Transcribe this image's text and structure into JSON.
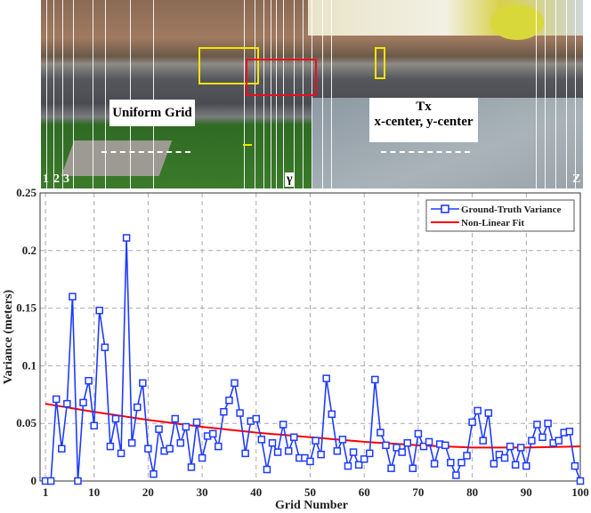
{
  "photo": {
    "label_grid": "Uniform Grid",
    "label_tx_line1": "Tx",
    "label_tx_line2": "x-center, y-center",
    "grid_index_labels": [
      "1",
      "2",
      "3"
    ],
    "gamma_label": "γ",
    "last_label": "Z",
    "box_colors": {
      "yellow": "#f2e600",
      "red": "#e8101a"
    }
  },
  "chart_data": {
    "type": "line",
    "xlabel": "Grid Number",
    "ylabel": "Variance (meters)",
    "xlim": [
      0,
      100
    ],
    "ylim": [
      0,
      0.25
    ],
    "xticks": [
      1,
      10,
      20,
      30,
      40,
      50,
      60,
      70,
      80,
      90,
      100
    ],
    "yticks": [
      0,
      0.05,
      0.1,
      0.15,
      0.2,
      0.25
    ],
    "ytick_labels": [
      "0",
      "0.05",
      "0.1",
      "0.15",
      "0.2",
      "0.25"
    ],
    "grid": true,
    "legend_placement": "top-right",
    "series": [
      {
        "name": "Ground-Truth Variance",
        "color": "#1f3bff",
        "marker": "square",
        "x_start": 1,
        "values": [
          0,
          0,
          0.071,
          0.028,
          0.067,
          0.16,
          0,
          0.068,
          0.087,
          0.048,
          0.148,
          0.116,
          0.03,
          0.054,
          0.024,
          0.211,
          0.033,
          0.064,
          0.085,
          0.028,
          0.006,
          0.045,
          0.026,
          0.028,
          0.054,
          0.033,
          0.047,
          0.012,
          0.051,
          0.02,
          0.039,
          0.041,
          0.03,
          0.06,
          0.07,
          0.085,
          0.059,
          0.024,
          0.052,
          0.054,
          0.036,
          0.01,
          0.033,
          0.025,
          0.049,
          0.026,
          0.038,
          0.02,
          0.02,
          0.017,
          0.035,
          0.023,
          0.089,
          0.058,
          0.026,
          0.036,
          0.013,
          0.025,
          0.014,
          0.019,
          0.024,
          0.088,
          0.042,
          0.031,
          0.011,
          0.029,
          0.025,
          0.033,
          0.011,
          0.041,
          0.03,
          0.034,
          0.015,
          0.032,
          0.031,
          0.016,
          0.005,
          0.016,
          0.022,
          0.051,
          0.061,
          0.035,
          0.059,
          0.015,
          0.023,
          0.02,
          0.03,
          0.014,
          0.029,
          0.013,
          0.035,
          0.049,
          0.038,
          0.05,
          0.033,
          0.035,
          0.042,
          0.043,
          0.013,
          0
        ]
      },
      {
        "name": "Non-Linear Fit",
        "color": "#ff0000",
        "x": [
          1,
          10,
          20,
          30,
          40,
          50,
          60,
          70,
          80,
          90,
          100
        ],
        "values": [
          0.067,
          0.06,
          0.053,
          0.047,
          0.042,
          0.038,
          0.034,
          0.031,
          0.029,
          0.029,
          0.03
        ]
      }
    ]
  }
}
